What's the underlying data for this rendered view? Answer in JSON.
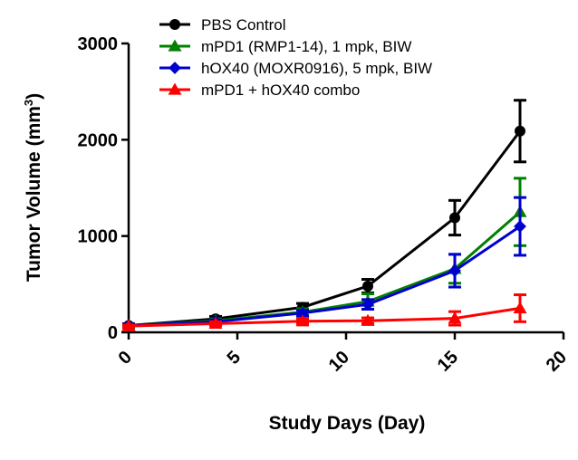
{
  "chart_data": {
    "type": "line",
    "title": "",
    "xlabel": "Study Days (Day)",
    "ylabel_main": "Tumor Volume (mm",
    "ylabel_sup": "3",
    "ylabel_close": ")",
    "xlim": [
      0,
      20
    ],
    "ylim": [
      0,
      3000
    ],
    "x_ticks": [
      "0",
      "5",
      "10",
      "15",
      "20"
    ],
    "y_ticks": [
      "0",
      "1000",
      "2000",
      "3000"
    ],
    "grid": false,
    "legend_position": "top-left",
    "series": [
      {
        "name": "PBS Control",
        "color": "#000000",
        "marker": "circle",
        "x": [
          0,
          4,
          8,
          11,
          15,
          18
        ],
        "y": [
          70,
          140,
          260,
          480,
          1190,
          2090
        ],
        "error": [
          20,
          25,
          40,
          70,
          180,
          320
        ]
      },
      {
        "name": "mPD1 (RMP1-14), 1 mpk, BIW",
        "color": "#008000",
        "marker": "triangle",
        "x": [
          0,
          4,
          8,
          11,
          15,
          18
        ],
        "y": [
          70,
          120,
          210,
          320,
          660,
          1250
        ],
        "error": [
          15,
          20,
          35,
          80,
          150,
          350
        ]
      },
      {
        "name": "hOX40 (MOXR0916), 5 mpk, BIW",
        "color": "#0000cc",
        "marker": "diamond",
        "x": [
          0,
          4,
          8,
          11,
          15,
          18
        ],
        "y": [
          70,
          110,
          200,
          290,
          640,
          1100
        ],
        "error": [
          15,
          20,
          30,
          50,
          170,
          300
        ]
      },
      {
        "name": "mPD1 + hOX40 combo",
        "color": "#ff0000",
        "marker": "triangle",
        "x": [
          0,
          4,
          8,
          11,
          15,
          18
        ],
        "y": [
          65,
          90,
          115,
          120,
          145,
          250
        ],
        "error": [
          10,
          20,
          25,
          30,
          70,
          140
        ]
      }
    ]
  }
}
